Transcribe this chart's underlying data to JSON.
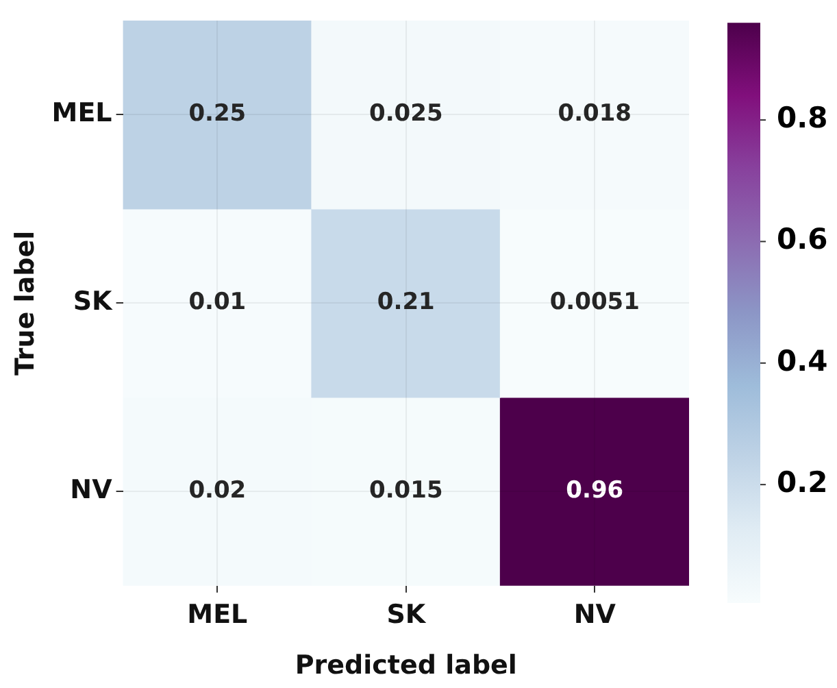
{
  "chart_data": {
    "type": "heatmap",
    "xlabel": "Predicted label",
    "ylabel": "True label",
    "categories": [
      "MEL",
      "SK",
      "NV"
    ],
    "y_categories": [
      "MEL",
      "SK",
      "NV"
    ],
    "cells": [
      [
        0.25,
        0.025,
        0.018
      ],
      [
        0.01,
        0.21,
        0.0051
      ],
      [
        0.02,
        0.015,
        0.96
      ]
    ],
    "data_labels": true,
    "grid": true,
    "clim": [
      0.0051,
      0.96
    ],
    "cticks": [
      0.2,
      0.4,
      0.6,
      0.8
    ]
  }
}
